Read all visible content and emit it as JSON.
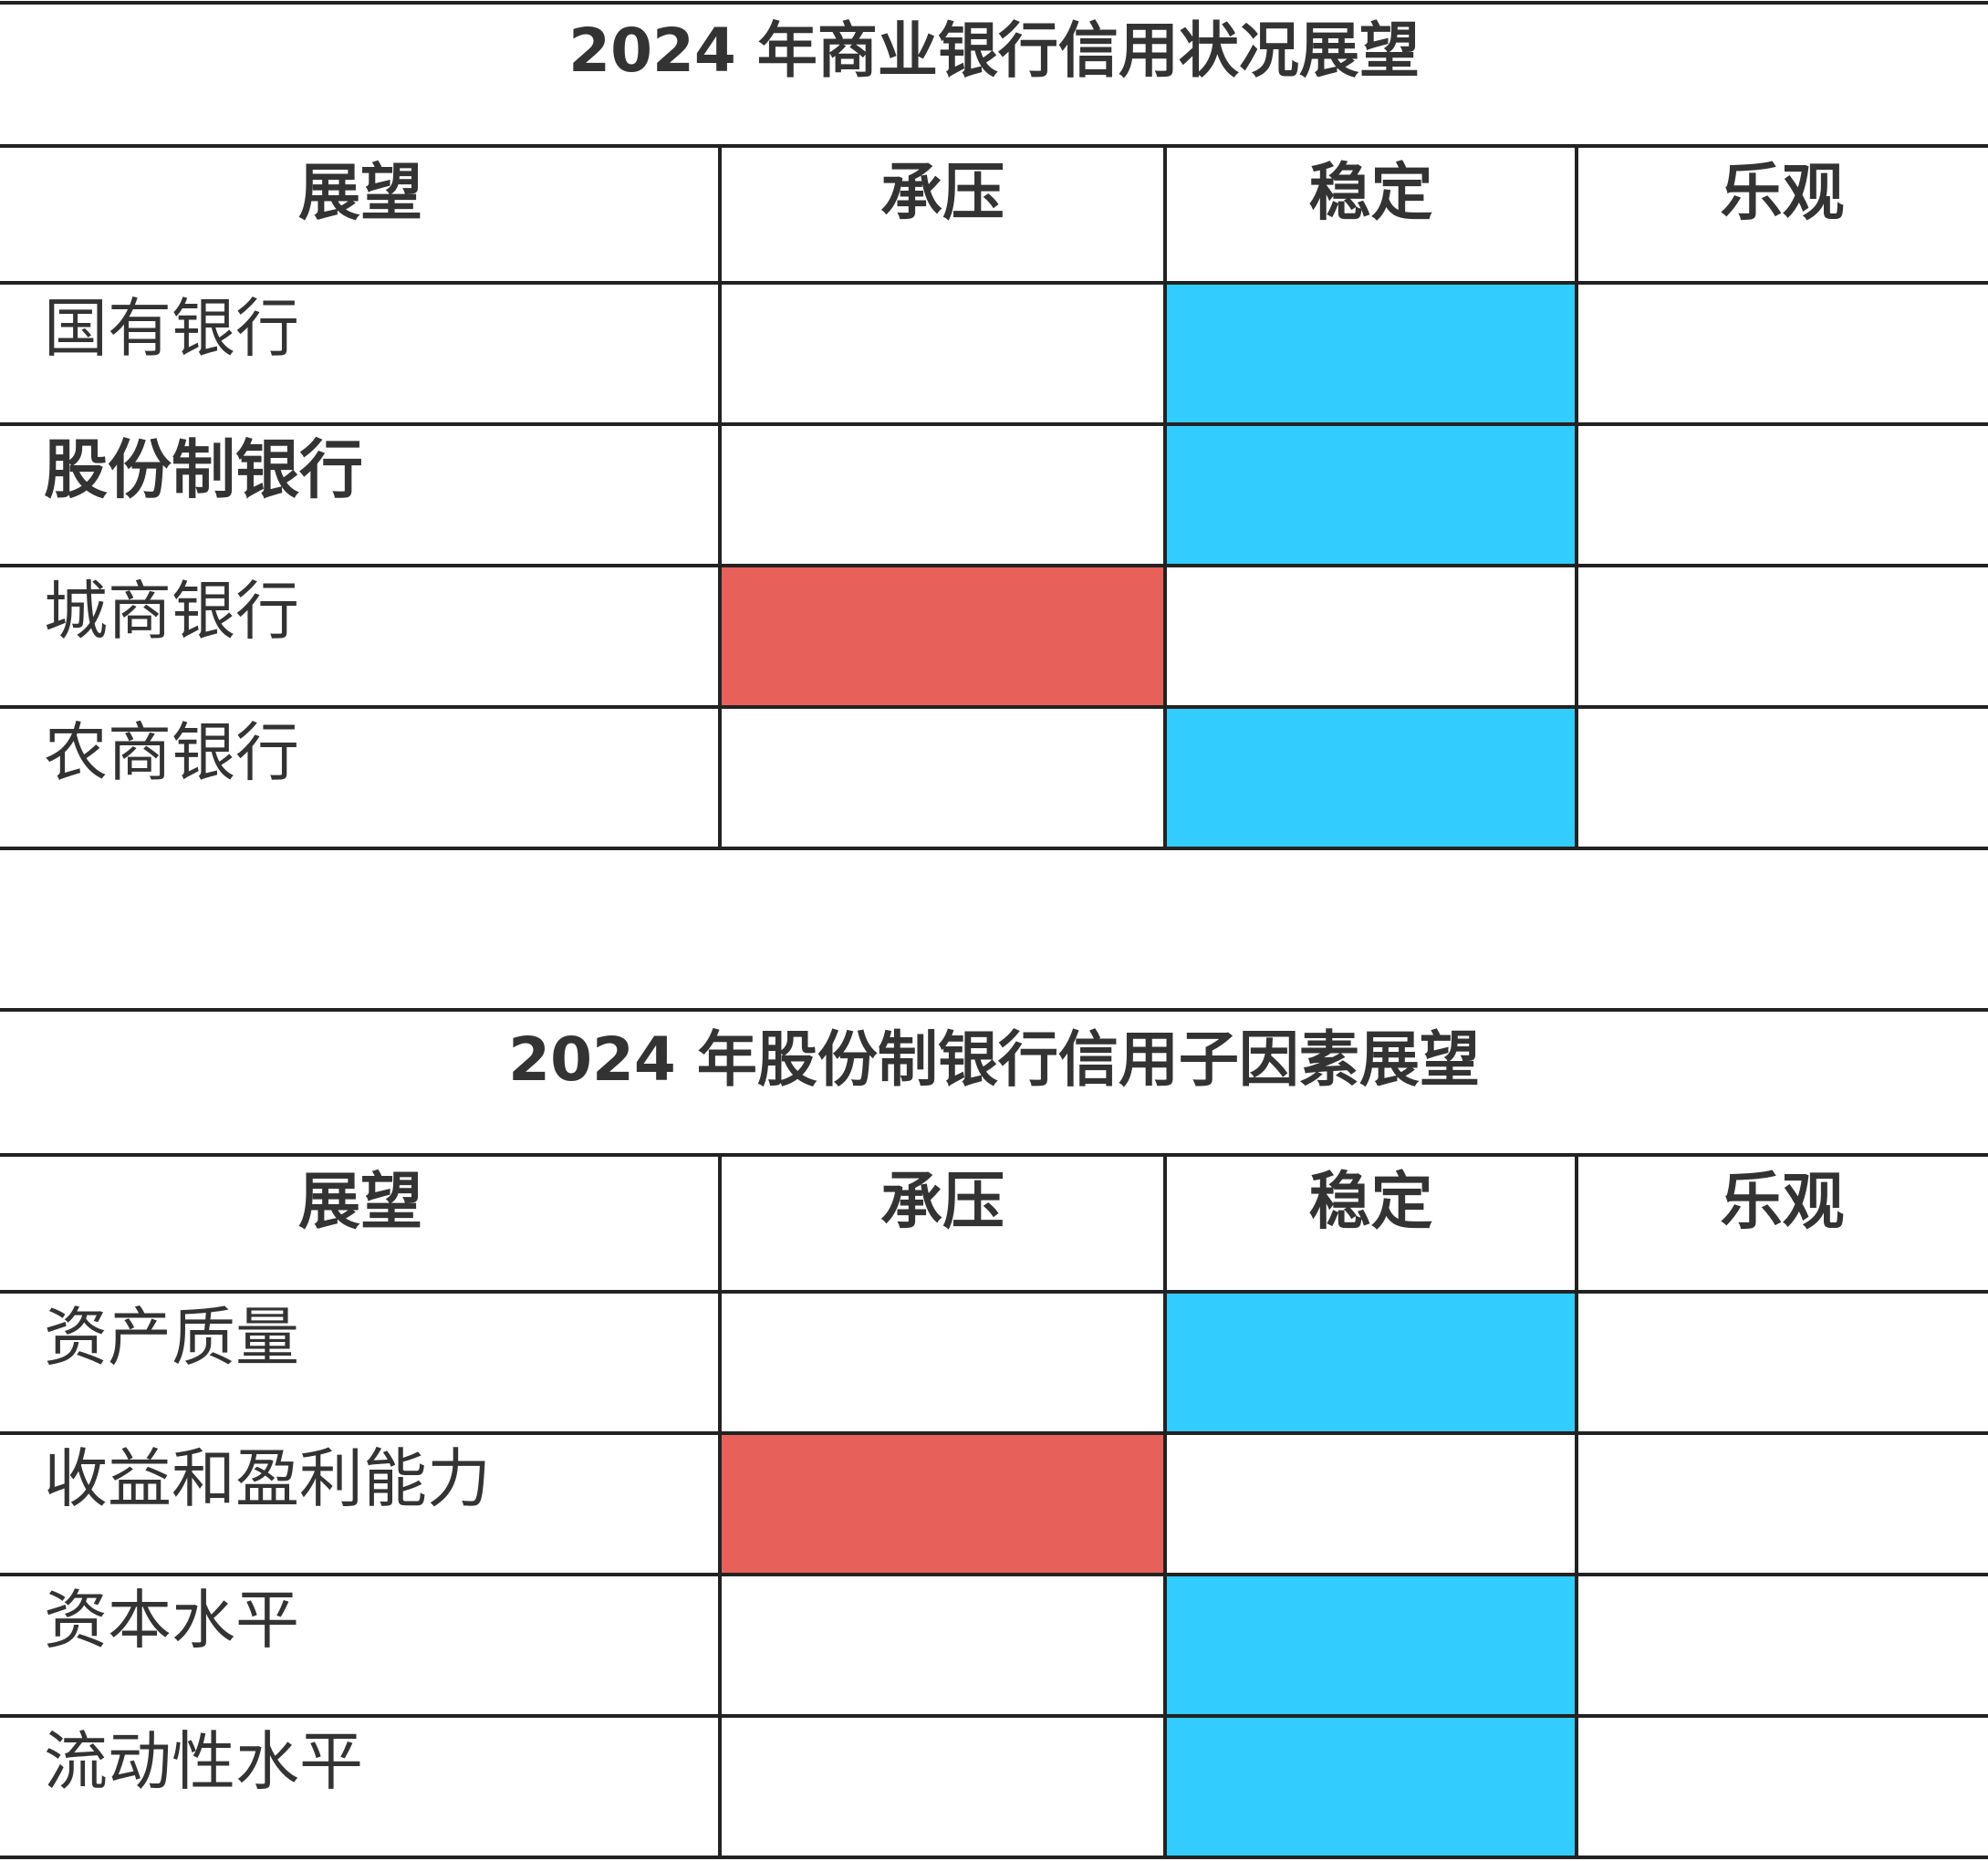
{
  "tables": [
    {
      "title": "2024 年商业银行信用状况展望",
      "header": [
        "展望",
        "承压",
        "稳定",
        "乐观"
      ],
      "rows": [
        {
          "label": "国有银行",
          "fills": [
            null,
            "#33ccff",
            null
          ]
        },
        {
          "label": "股份制银行",
          "bold": true,
          "fills": [
            null,
            "#33ccff",
            null
          ]
        },
        {
          "label": "城商银行",
          "fills": [
            "#e8605a",
            null,
            null
          ]
        },
        {
          "label": "农商银行",
          "fills": [
            null,
            "#33ccff",
            null
          ]
        }
      ]
    },
    {
      "title": "2024 年股份制银行信用子因素展望",
      "header": [
        "展望",
        "承压",
        "稳定",
        "乐观"
      ],
      "rows": [
        {
          "label": "资产质量",
          "fills": [
            null,
            "#33ccff",
            null
          ]
        },
        {
          "label": "收益和盈利能力",
          "fills": [
            "#e8605a",
            null,
            null
          ]
        },
        {
          "label": "资本水平",
          "fills": [
            null,
            "#33ccff",
            null
          ]
        },
        {
          "label": "流动性水平",
          "fills": [
            null,
            "#33ccff",
            null
          ]
        }
      ]
    }
  ]
}
